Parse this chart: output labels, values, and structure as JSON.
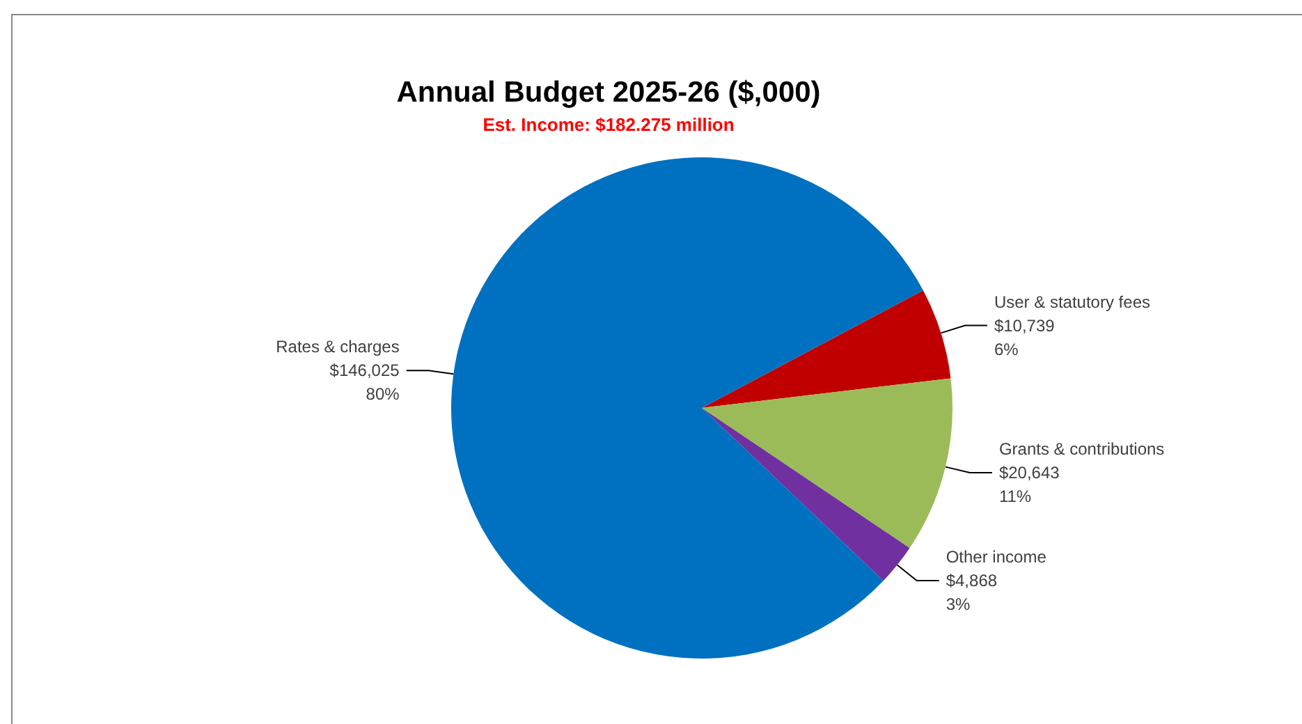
{
  "chart_data": {
    "type": "pie",
    "title": "Annual Budget 2025-26 ($,000)",
    "subtitle": "Est. Income: $182.275 million",
    "categories": [
      "User & statutory fees",
      "Grants & contributions",
      "Other income",
      "Rates & charges"
    ],
    "values": [
      10739,
      20643,
      4868,
      146025
    ],
    "colors": [
      "#c00000",
      "#9bbb59",
      "#7030a0",
      "#0070c0"
    ],
    "value_labels": [
      "$10,739\n6%",
      "$20,643\n11%",
      "$4,868\n3%",
      "$146,025\n80%"
    ],
    "legend": false
  }
}
